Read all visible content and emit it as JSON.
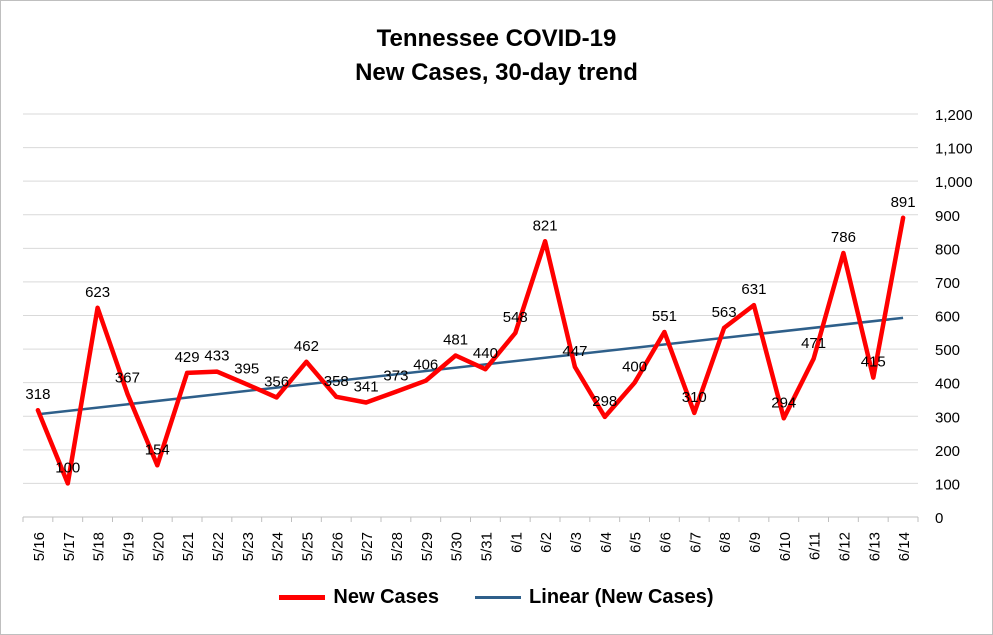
{
  "chart_data": {
    "type": "line",
    "title_line1": "Tennessee COVID-19",
    "title_line2": "New Cases, 30-day trend",
    "categories": [
      "5/16",
      "5/17",
      "5/18",
      "5/19",
      "5/20",
      "5/21",
      "5/22",
      "5/23",
      "5/24",
      "5/25",
      "5/26",
      "5/27",
      "5/28",
      "5/29",
      "5/30",
      "5/31",
      "6/1",
      "6/2",
      "6/3",
      "6/4",
      "6/5",
      "6/6",
      "6/7",
      "6/8",
      "6/9",
      "6/10",
      "6/11",
      "6/12",
      "6/13",
      "6/14"
    ],
    "series": [
      {
        "name": "New Cases",
        "color": "#ff0000",
        "values": [
          318,
          100,
          623,
          367,
          154,
          429,
          433,
          395,
          356,
          462,
          358,
          341,
          373,
          406,
          481,
          440,
          548,
          821,
          447,
          298,
          400,
          551,
          310,
          563,
          631,
          294,
          471,
          786,
          415,
          891
        ]
      },
      {
        "name": "Linear (New Cases)",
        "color": "#2e5f8a",
        "trend": true,
        "start": 306,
        "end": 593
      }
    ],
    "yticks": [
      "0",
      "100",
      "200",
      "300",
      "400",
      "500",
      "600",
      "700",
      "800",
      "900",
      "1,000",
      "1,100",
      "1,200"
    ],
    "ylim": [
      0,
      1200
    ],
    "y_axis_side": "right",
    "grid": true,
    "legend_position": "bottom"
  }
}
